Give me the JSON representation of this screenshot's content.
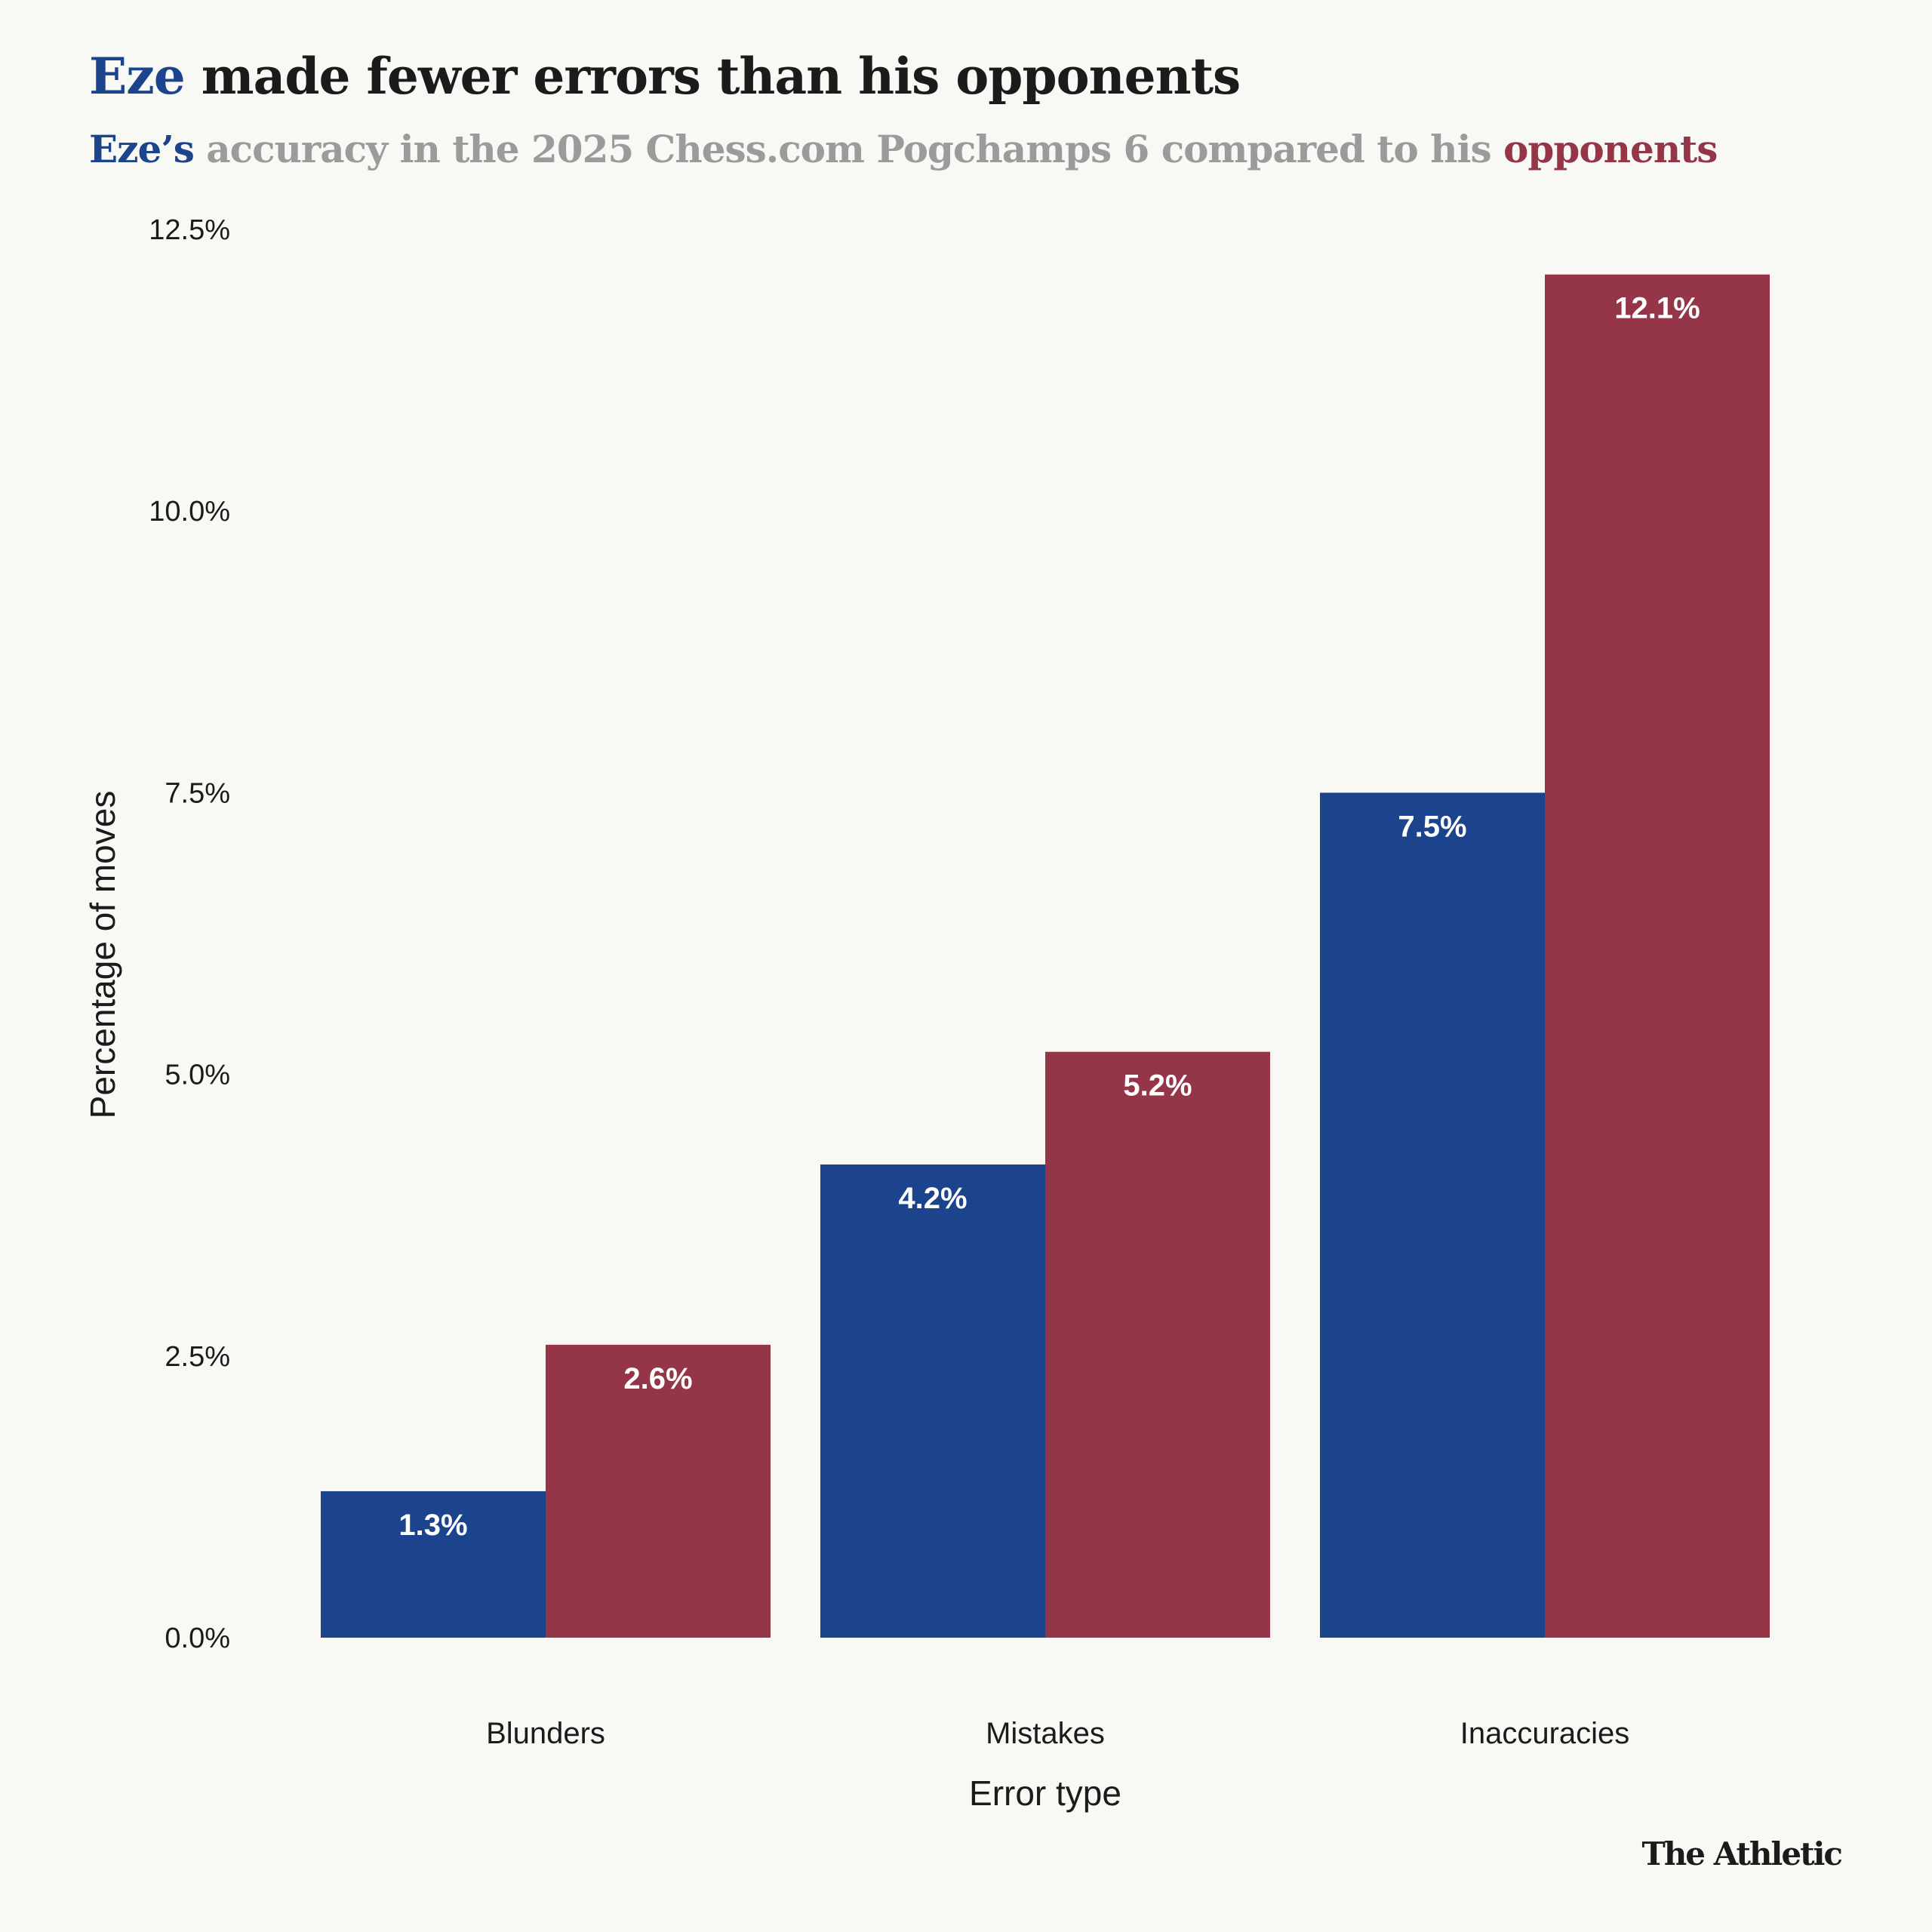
{
  "header": {
    "title_highlight": "Eze",
    "title_rest": " made fewer errors than his opponents",
    "subtitle_a": "Eze’s",
    "subtitle_mid": " accuracy in the 2025 Chess.com Pogchamps 6 compared to his ",
    "subtitle_b": "opponents"
  },
  "brand": "The Athletic",
  "colors": {
    "eze": "#1c448c",
    "opponents": "#943647",
    "background": "#f8f8f5",
    "text": "#1b1b1b",
    "subtitle_gray": "#9b9b9b"
  },
  "chart_data": {
    "type": "bar",
    "categories": [
      "Blunders",
      "Mistakes",
      "Inaccuracies"
    ],
    "series": [
      {
        "values": [
          1.3,
          4.2,
          7.5
        ],
        "labels": [
          "1.3%",
          "4.2%",
          "7.5%"
        ],
        "color": "#1c448c"
      },
      {
        "values": [
          2.6,
          5.2,
          12.1
        ],
        "labels": [
          "2.6%",
          "5.2%",
          "12.1%"
        ],
        "color": "#943647"
      }
    ],
    "xlabel": "Error type",
    "ylabel": "Percentage of moves",
    "ylim": [
      0,
      12.5
    ],
    "yticks": [
      0,
      2.5,
      5.0,
      7.5,
      10.0,
      12.5
    ],
    "ytick_labels": [
      "0.0%",
      "2.5%",
      "5.0%",
      "7.5%",
      "10.0%",
      "12.5%"
    ],
    "grid": false,
    "legend": "none"
  }
}
